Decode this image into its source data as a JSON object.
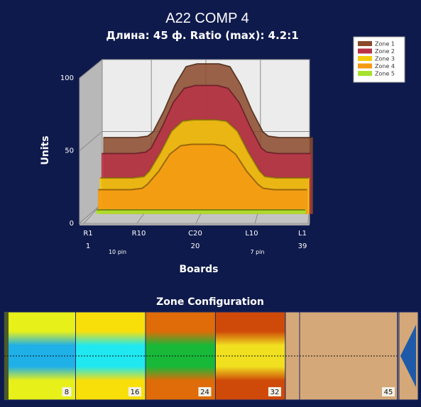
{
  "chart_data": {
    "type": "area",
    "title": "A22 COMP 4",
    "subtitle": "Длина: 45 ф.  Ratio (max): 4.2:1",
    "xlabel": "Boards",
    "ylabel": "Units",
    "ylim": [
      0,
      100
    ],
    "y_ticks": [
      "0",
      "50",
      "100"
    ],
    "x_ticks": [
      {
        "board": 1,
        "label": "R1",
        "num": "1"
      },
      {
        "board": 10,
        "label": "R10",
        "num": ""
      },
      {
        "board": 20,
        "label": "C20",
        "num": "20"
      },
      {
        "board": 30,
        "label": "L10",
        "num": ""
      },
      {
        "board": 39,
        "label": "L1",
        "num": "39"
      }
    ],
    "pin_labels": [
      {
        "board": 10,
        "text": "10 pin"
      },
      {
        "board": 30,
        "text": "7 pin"
      }
    ],
    "x": [
      1,
      4,
      7,
      9,
      10,
      12,
      14,
      16,
      18,
      20,
      22,
      24,
      26,
      28,
      30,
      31,
      33,
      36,
      39
    ],
    "series": [
      {
        "name": "Zone 1",
        "color": "#8b4a2b",
        "values": [
          48,
          48,
          48,
          49,
          52,
          67,
          85,
          98,
          100,
          100,
          100,
          98,
          85,
          67,
          52,
          49,
          48,
          48,
          48
        ]
      },
      {
        "name": "Zone 2",
        "color": "#b83246",
        "values": [
          38,
          38,
          38,
          39,
          42,
          57,
          74,
          84,
          86,
          86,
          86,
          84,
          74,
          57,
          42,
          39,
          38,
          38,
          38
        ]
      },
      {
        "name": "Zone 3",
        "color": "#f2cc0c",
        "values": [
          22,
          22,
          22,
          23,
          27,
          40,
          55,
          62,
          63,
          63,
          63,
          62,
          55,
          40,
          27,
          23,
          22,
          22,
          22
        ]
      },
      {
        "name": "Zone 4",
        "color": "#f59a12",
        "values": [
          15,
          15,
          15,
          16,
          19,
          28,
          40,
          46,
          47,
          47,
          47,
          46,
          40,
          28,
          19,
          16,
          15,
          15,
          15
        ]
      },
      {
        "name": "Zone 5",
        "color": "#a6e22e",
        "values": [
          2,
          2,
          2,
          2,
          2,
          2,
          2,
          2,
          2,
          2,
          2,
          2,
          2,
          2,
          2,
          2,
          2,
          2,
          2
        ]
      }
    ],
    "legend_position": "top-right",
    "grid": true
  },
  "zone_config": {
    "title": "Zone Configuration",
    "board_labels": [
      "8",
      "16",
      "24",
      "32",
      "45"
    ],
    "segments": [
      {
        "name": "zone-1",
        "edge": "#e8f01a",
        "mid": "#1fb0e8",
        "end_board": 8
      },
      {
        "name": "zone-2",
        "edge": "#f8df0a",
        "mid": "#20e8f0",
        "end_board": 16
      },
      {
        "name": "zone-3",
        "edge": "#df6c08",
        "mid": "#18b838",
        "end_board": 24
      },
      {
        "name": "zone-4",
        "edge": "#cf4a08",
        "mid": "#f0e020",
        "end_board": 32
      },
      {
        "name": "zone-5",
        "edge": "#d4a878",
        "mid": "#d4a878",
        "end_board": 45
      }
    ]
  }
}
